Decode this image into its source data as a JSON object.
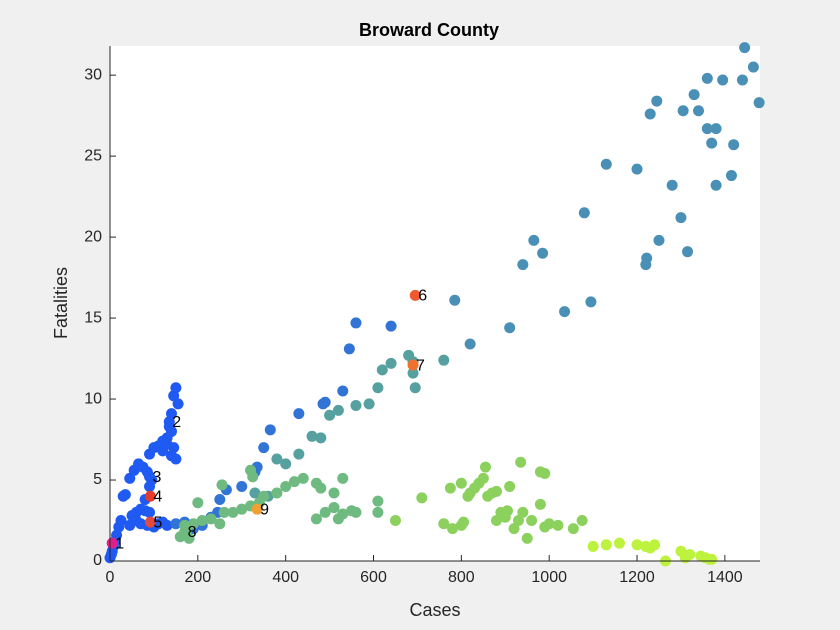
{
  "chart_data": {
    "type": "scatter",
    "title": "Broward County",
    "x_label": "Cases",
    "y_label": "Fatalities",
    "xlim": [
      0,
      1480
    ],
    "ylim": [
      0,
      31.8
    ],
    "xticks": [
      0,
      200,
      400,
      600,
      800,
      1000,
      1200,
      1400
    ],
    "yticks": [
      0,
      5,
      10,
      15,
      20,
      25,
      30
    ],
    "grid": false,
    "series": [
      {
        "color": "#1f5af2",
        "x": [
          0,
          3,
          5,
          8,
          10,
          15,
          20,
          25,
          30,
          35,
          45,
          55,
          65,
          75,
          85,
          90,
          100,
          110,
          120,
          130,
          135,
          140,
          145,
          150,
          155,
          140,
          145,
          140,
          150,
          120,
          130,
          60,
          70,
          80,
          90,
          60,
          70,
          85,
          100,
          110,
          120,
          130,
          95,
          90,
          80,
          50,
          45
        ],
        "values": [
          0.2,
          0.4,
          0.6,
          0.9,
          1.2,
          1.6,
          2.1,
          2.5,
          4.0,
          4.1,
          5.1,
          5.6,
          6.0,
          5.8,
          5.5,
          6.6,
          7.0,
          7.1,
          7.4,
          7.6,
          8.3,
          9.1,
          10.2,
          10.7,
          9.7,
          8.0,
          7.0,
          6.5,
          6.3,
          6.8,
          7.2,
          3.0,
          3.2,
          3.1,
          3.0,
          2.5,
          2.3,
          2.2,
          2.1,
          2.3,
          2.4,
          2.2,
          5.0,
          4.6,
          3.8,
          2.8,
          2.2
        ]
      },
      {
        "color": "#3174d6",
        "x": [
          150,
          170,
          190,
          210,
          230,
          245,
          250,
          265,
          300,
          330,
          335,
          350,
          365,
          430,
          485,
          490,
          530,
          545,
          560,
          640
        ],
        "values": [
          2.3,
          2.4,
          2.0,
          2.2,
          2.7,
          3.0,
          3.8,
          4.4,
          4.6,
          5.5,
          5.8,
          7.0,
          8.1,
          9.1,
          9.7,
          9.8,
          10.5,
          13.1,
          14.7,
          14.5
        ]
      },
      {
        "color": "#4a8fb6",
        "x": [
          785,
          820,
          910,
          940,
          965,
          985,
          1035,
          1080,
          1095,
          1130,
          1200,
          1220,
          1222,
          1230,
          1245,
          1250,
          1280,
          1300,
          1305,
          1315,
          1330,
          1340,
          1360,
          1360,
          1370,
          1380,
          1380,
          1395,
          1415,
          1420,
          1440,
          1445,
          1465,
          1478
        ],
        "values": [
          16.1,
          13.4,
          14.4,
          18.3,
          19.8,
          19.0,
          15.4,
          21.5,
          16.0,
          24.5,
          24.2,
          18.3,
          18.7,
          27.6,
          28.4,
          19.8,
          23.2,
          21.2,
          27.8,
          19.1,
          28.8,
          27.8,
          29.8,
          26.7,
          25.8,
          26.7,
          23.2,
          29.7,
          23.8,
          25.7,
          29.7,
          31.7,
          30.5,
          28.3
        ]
      },
      {
        "color": "#56a0a0",
        "x": [
          330,
          360,
          380,
          400,
          430,
          460,
          480,
          500,
          520,
          560,
          590,
          610,
          620,
          640,
          680,
          690,
          695,
          760,
          690
        ],
        "values": [
          4.2,
          4.0,
          6.3,
          6.0,
          6.6,
          7.7,
          7.6,
          9.0,
          9.3,
          9.6,
          9.7,
          10.7,
          11.8,
          12.2,
          12.7,
          11.6,
          10.7,
          12.4,
          12.3
        ]
      },
      {
        "color": "#6fba80",
        "x": [
          210,
          230,
          250,
          260,
          280,
          300,
          320,
          340,
          350,
          380,
          400,
          420,
          440,
          470,
          480,
          510,
          530,
          470,
          490,
          510,
          520,
          530,
          550,
          560,
          610,
          610,
          255,
          170,
          160,
          180,
          175,
          190,
          200,
          320,
          325
        ],
        "values": [
          2.5,
          2.6,
          2.3,
          3.0,
          3.0,
          3.2,
          3.4,
          3.6,
          4.0,
          4.2,
          4.6,
          4.9,
          5.1,
          4.8,
          4.5,
          4.2,
          5.1,
          2.6,
          3.0,
          3.3,
          2.6,
          2.9,
          3.1,
          3.0,
          3.7,
          3.0,
          4.7,
          2.2,
          1.5,
          1.4,
          1.9,
          2.3,
          3.6,
          5.6,
          5.2
        ]
      },
      {
        "color": "#8cd15e",
        "x": [
          650,
          710,
          760,
          775,
          800,
          805,
          800,
          815,
          820,
          830,
          840,
          850,
          855,
          860,
          870,
          880,
          880,
          890,
          900,
          905,
          910,
          920,
          930,
          940,
          935,
          950,
          960,
          980,
          990,
          990,
          1000,
          1020,
          980,
          1055,
          1075,
          780
        ],
        "values": [
          2.5,
          3.9,
          2.3,
          4.5,
          2.2,
          2.4,
          4.8,
          4.0,
          4.2,
          4.5,
          4.8,
          5.1,
          5.8,
          4.0,
          4.2,
          4.3,
          2.5,
          3.0,
          2.7,
          3.1,
          4.6,
          2.0,
          2.5,
          3.0,
          6.1,
          1.4,
          2.5,
          5.5,
          5.4,
          2.1,
          2.3,
          2.2,
          3.5,
          2.0,
          2.5,
          2.0
        ]
      },
      {
        "color": "#bdf23e",
        "x": [
          1100,
          1130,
          1160,
          1200,
          1220,
          1230,
          1240,
          1265,
          1300,
          1310,
          1320,
          1345,
          1355,
          1365,
          1370,
          1310
        ],
        "values": [
          0.9,
          1.0,
          1.1,
          1.0,
          0.9,
          0.8,
          1.0,
          0.0,
          0.6,
          0.2,
          0.4,
          0.3,
          0.2,
          0.1,
          0.1,
          0.3
        ]
      }
    ],
    "annotations": [
      {
        "text": "1",
        "x": 5,
        "y": 1.1,
        "color": "#e0208a"
      },
      {
        "text": "2",
        "x": 135,
        "y": 8.6,
        "color": "#1f5af2"
      },
      {
        "text": "3",
        "x": 90,
        "y": 5.2,
        "color": "#1f5af2"
      },
      {
        "text": "4",
        "x": 92,
        "y": 4.0,
        "color": "#e53b2a"
      },
      {
        "text": "5",
        "x": 92,
        "y": 2.4,
        "color": "#e04a40"
      },
      {
        "text": "6",
        "x": 695,
        "y": 16.4,
        "color": "#f05a30"
      },
      {
        "text": "7",
        "x": 690,
        "y": 12.1,
        "color": "#f07030"
      },
      {
        "text": "8",
        "x": 170,
        "y": 1.8,
        "color": "#6fba80"
      },
      {
        "text": "9",
        "x": 335,
        "y": 3.2,
        "color": "#f0a030"
      }
    ]
  }
}
